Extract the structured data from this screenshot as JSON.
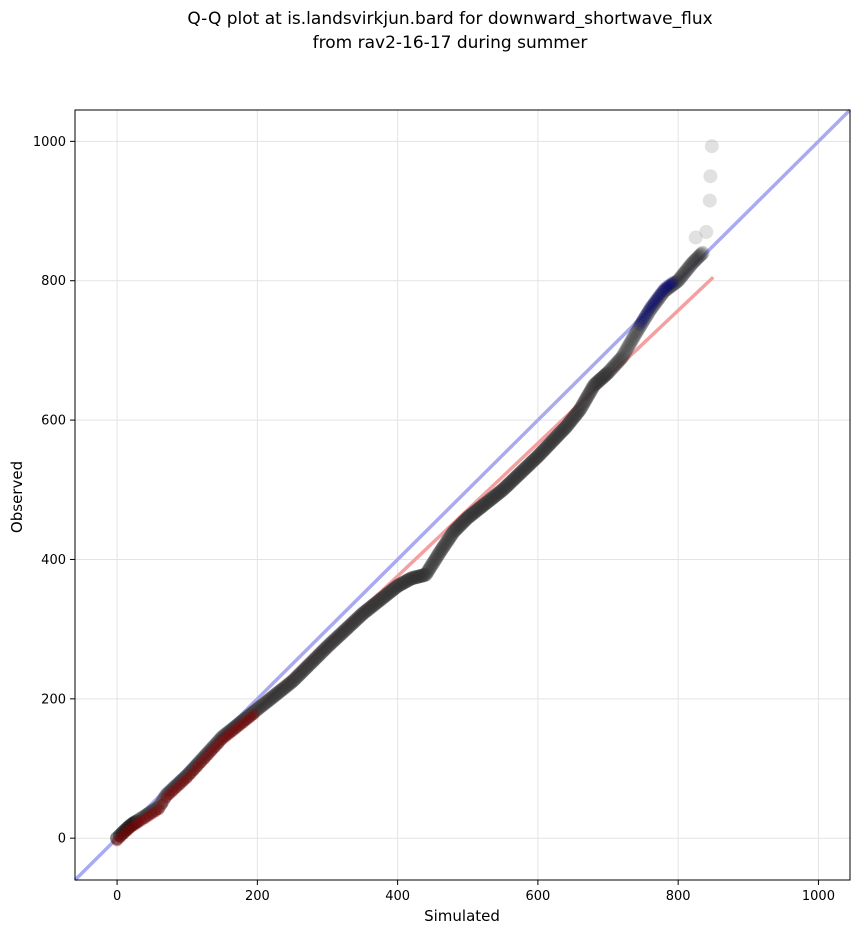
{
  "chart_data": {
    "type": "scatter",
    "title_lines": [
      "Q-Q plot at is.landsvirkjun.bard for downward_shortwave_flux",
      "from rav2-16-17 during summer"
    ],
    "xlabel": "Simulated",
    "ylabel": "Observed",
    "xlim": [
      -60,
      1045
    ],
    "ylim": [
      -60,
      1045
    ],
    "xticks": [
      0,
      200,
      400,
      600,
      800,
      1000
    ],
    "yticks": [
      0,
      200,
      400,
      600,
      800,
      1000
    ],
    "xtick_labels": [
      "0",
      "200",
      "400",
      "600",
      "800",
      "1000"
    ],
    "ytick_labels": [
      "0",
      "200",
      "400",
      "600",
      "800",
      "1000"
    ],
    "grid": true,
    "colors": {
      "points": "#333333",
      "identity_line": "#aaaaf0",
      "fit_line": "#f5a0a0",
      "lower_overlay": "#8b0000",
      "upper_overlay": "#00008b"
    },
    "identity_line": {
      "x": [
        -60,
        1045
      ],
      "y": [
        -60,
        1045
      ]
    },
    "fit_line": {
      "x": [
        0,
        850
      ],
      "y": [
        -5,
        805
      ]
    },
    "quantile_curve": [
      [
        0,
        0
      ],
      [
        10,
        10
      ],
      [
        20,
        19
      ],
      [
        40,
        32
      ],
      [
        60,
        45
      ],
      [
        70,
        62
      ],
      [
        100,
        90
      ],
      [
        150,
        145
      ],
      [
        200,
        185
      ],
      [
        250,
        225
      ],
      [
        300,
        275
      ],
      [
        350,
        322
      ],
      [
        400,
        362
      ],
      [
        420,
        373
      ],
      [
        440,
        378
      ],
      [
        460,
        410
      ],
      [
        480,
        440
      ],
      [
        500,
        460
      ],
      [
        550,
        500
      ],
      [
        600,
        548
      ],
      [
        640,
        590
      ],
      [
        660,
        615
      ],
      [
        680,
        650
      ],
      [
        700,
        668
      ],
      [
        720,
        690
      ],
      [
        740,
        725
      ],
      [
        760,
        758
      ],
      [
        780,
        785
      ],
      [
        800,
        800
      ],
      [
        820,
        825
      ],
      [
        835,
        840
      ]
    ],
    "n_points": 500,
    "tail_points": [
      {
        "x": 825,
        "y": 862
      },
      {
        "x": 840,
        "y": 870
      },
      {
        "x": 845,
        "y": 915
      },
      {
        "x": 846,
        "y": 950
      },
      {
        "x": 848,
        "y": 993
      }
    ]
  }
}
